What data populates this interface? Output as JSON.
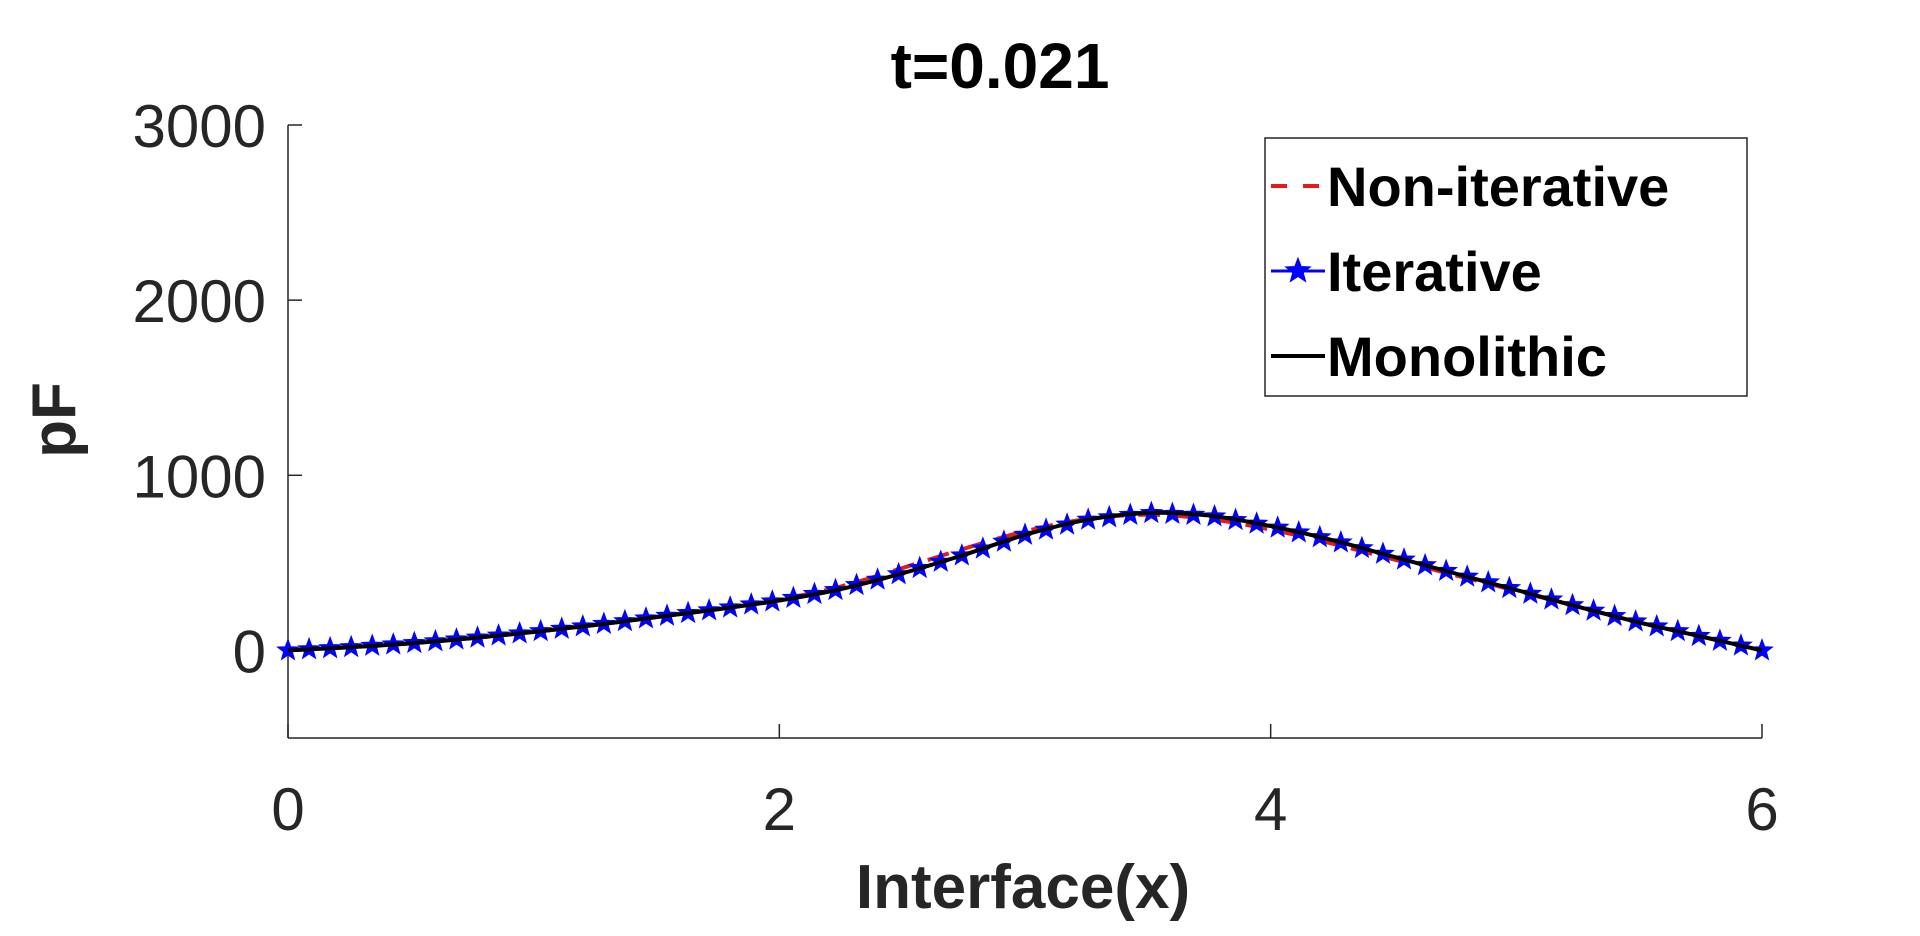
{
  "chart_data": {
    "type": "line",
    "title": "t=0.021",
    "xlabel": "Interface(x)",
    "ylabel": "pF",
    "xlim": [
      0,
      6
    ],
    "ylim": [
      -500,
      3000
    ],
    "xticks": [
      0,
      2,
      4,
      6
    ],
    "yticks": [
      0,
      1000,
      2000,
      3000
    ],
    "xtick_labels": [
      "0",
      "2",
      "4",
      "6"
    ],
    "ytick_labels": [
      "0",
      "1000",
      "2000",
      "3000"
    ],
    "grid": false,
    "legend_position": "top-right",
    "x": [
      0,
      0.25,
      0.5,
      0.75,
      1.0,
      1.25,
      1.5,
      1.75,
      2.0,
      2.25,
      2.5,
      2.75,
      3.0,
      3.25,
      3.5,
      3.75,
      4.0,
      4.25,
      4.5,
      4.75,
      5.0,
      5.25,
      5.5,
      5.75,
      6.0
    ],
    "series": [
      {
        "name": "Non-iterative",
        "color": "#e41a1c",
        "style": "dashed",
        "values": [
          0,
          18,
          40,
          70,
          105,
          145,
          190,
          235,
          290,
          365,
          470,
          580,
          680,
          750,
          775,
          750,
          690,
          610,
          520,
          430,
          340,
          250,
          160,
          80,
          0
        ]
      },
      {
        "name": "Iterative",
        "color": "#0000ff",
        "style": "star-markers",
        "values": [
          0,
          18,
          40,
          70,
          105,
          145,
          190,
          235,
          285,
          350,
          440,
          545,
          660,
          745,
          785,
          770,
          710,
          630,
          535,
          440,
          345,
          250,
          160,
          80,
          0
        ]
      },
      {
        "name": "Monolithic",
        "color": "#000000",
        "style": "solid",
        "values": [
          0,
          18,
          40,
          70,
          105,
          145,
          190,
          235,
          285,
          350,
          440,
          545,
          660,
          745,
          785,
          770,
          710,
          630,
          535,
          440,
          345,
          250,
          160,
          80,
          0
        ]
      }
    ]
  }
}
